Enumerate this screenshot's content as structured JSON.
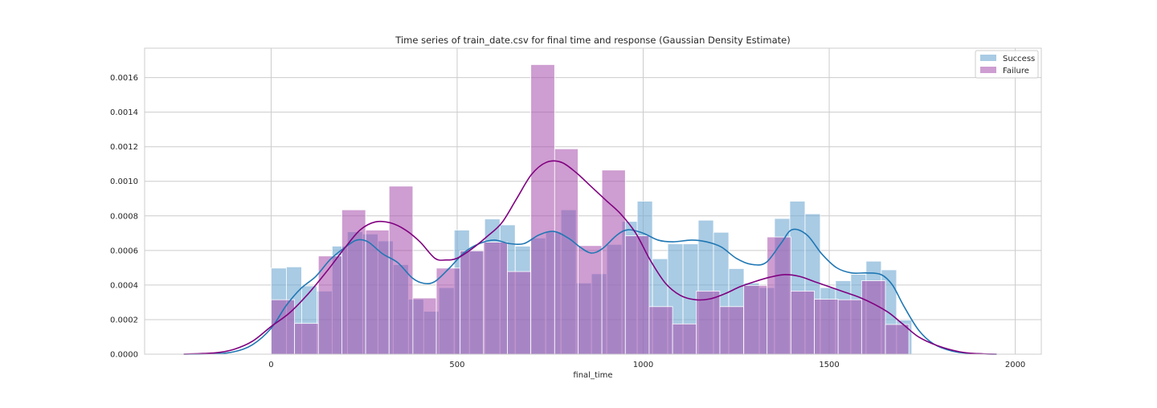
{
  "colors": {
    "success_bar": "#6fa8d2",
    "failure_bar": "#a64dab",
    "success_line": "#1f77b4",
    "failure_line": "#800080",
    "grid": "#cccccc",
    "axes_edge": "#cccccc",
    "text": "#262626"
  },
  "chart_data": {
    "type": "bar",
    "title": "Time series of train_date.csv for final time and response (Gaussian Density Estimate)",
    "xlabel": "final_time",
    "ylabel": "",
    "xlim": [
      -340,
      2070
    ],
    "ylim": [
      0,
      0.00177
    ],
    "grid": true,
    "legend_position": "top-right",
    "xticks": [
      0,
      500,
      1000,
      1500,
      2000
    ],
    "xtick_labels": [
      "0",
      "500",
      "1000",
      "1500",
      "2000"
    ],
    "yticks": [
      0,
      0.0002,
      0.0004,
      0.0006,
      0.0008,
      0.001,
      0.0012,
      0.0014,
      0.0016
    ],
    "ytick_labels": [
      "0.0000",
      "0.0002",
      "0.0004",
      "0.0006",
      "0.0008",
      "0.0010",
      "0.0012",
      "0.0014",
      "0.0016"
    ],
    "series": [
      {
        "name": "Success",
        "kind": "histogram",
        "color": "#6fa8d2",
        "opacity": 0.6,
        "bins": [
          [
            0,
            41,
            0.000498
          ],
          [
            41,
            82,
            0.000505
          ],
          [
            82,
            123,
            0.000395
          ],
          [
            123,
            164,
            0.000365
          ],
          [
            164,
            205,
            0.000625
          ],
          [
            205,
            246,
            0.000708
          ],
          [
            246,
            287,
            0.000695
          ],
          [
            287,
            328,
            0.000655
          ],
          [
            328,
            369,
            0.000518
          ],
          [
            369,
            410,
            0.000318
          ],
          [
            410,
            451,
            0.000248
          ],
          [
            451,
            492,
            0.000385
          ],
          [
            492,
            533,
            0.000718
          ],
          [
            533,
            574,
            0.000598
          ],
          [
            574,
            615,
            0.000782
          ],
          [
            615,
            656,
            0.000748
          ],
          [
            656,
            697,
            0.000625
          ],
          [
            697,
            738,
            0.000672
          ],
          [
            738,
            779,
            0.000708
          ],
          [
            779,
            820,
            0.000835
          ],
          [
            820,
            861,
            0.000412
          ],
          [
            861,
            902,
            0.000465
          ],
          [
            902,
            943,
            0.000635
          ],
          [
            943,
            984,
            0.000768
          ],
          [
            984,
            1025,
            0.000885
          ],
          [
            1025,
            1066,
            0.000552
          ],
          [
            1066,
            1107,
            0.000638
          ],
          [
            1107,
            1148,
            0.000638
          ],
          [
            1148,
            1189,
            0.000775
          ],
          [
            1189,
            1230,
            0.000705
          ],
          [
            1230,
            1271,
            0.000495
          ],
          [
            1271,
            1312,
            0.000412
          ],
          [
            1312,
            1353,
            0.000385
          ],
          [
            1353,
            1394,
            0.000785
          ],
          [
            1394,
            1435,
            0.000885
          ],
          [
            1435,
            1476,
            0.000812
          ],
          [
            1476,
            1517,
            0.000385
          ],
          [
            1517,
            1558,
            0.000425
          ],
          [
            1558,
            1599,
            0.000462
          ],
          [
            1599,
            1640,
            0.000538
          ],
          [
            1640,
            1681,
            0.000488
          ],
          [
            1681,
            1722,
            0.000198
          ]
        ],
        "kde": [
          [
            -235,
            0.0
          ],
          [
            -150,
            2.5e-06
          ],
          [
            -100,
            1.4e-05
          ],
          [
            -50,
            5.5e-05
          ],
          [
            0,
            0.00015
          ],
          [
            40,
            0.00028
          ],
          [
            80,
            0.00038
          ],
          [
            120,
            0.00045
          ],
          [
            160,
            0.00055
          ],
          [
            200,
            0.00062
          ],
          [
            230,
            0.00066
          ],
          [
            260,
            0.00065
          ],
          [
            300,
            0.00058
          ],
          [
            340,
            0.00053
          ],
          [
            380,
            0.00044
          ],
          [
            410,
            0.00041
          ],
          [
            440,
            0.00042
          ],
          [
            480,
            0.0005
          ],
          [
            520,
            0.00059
          ],
          [
            560,
            0.00064
          ],
          [
            600,
            0.00066
          ],
          [
            640,
            0.00064
          ],
          [
            680,
            0.00064
          ],
          [
            720,
            0.00069
          ],
          [
            760,
            0.00071
          ],
          [
            800,
            0.00067
          ],
          [
            830,
            0.00062
          ],
          [
            860,
            0.000585
          ],
          [
            890,
            0.00061
          ],
          [
            930,
            0.00069
          ],
          [
            960,
            0.00072
          ],
          [
            1000,
            0.0007
          ],
          [
            1040,
            0.00066
          ],
          [
            1080,
            0.00065
          ],
          [
            1130,
            0.00066
          ],
          [
            1170,
            0.00065
          ],
          [
            1210,
            0.00062
          ],
          [
            1250,
            0.000555
          ],
          [
            1290,
            0.00052
          ],
          [
            1330,
            0.00053
          ],
          [
            1370,
            0.00064
          ],
          [
            1400,
            0.00072
          ],
          [
            1440,
            0.00069
          ],
          [
            1480,
            0.00058
          ],
          [
            1520,
            0.0005
          ],
          [
            1560,
            0.00047
          ],
          [
            1600,
            0.00047
          ],
          [
            1640,
            0.00046
          ],
          [
            1670,
            0.0004
          ],
          [
            1700,
            0.00028
          ],
          [
            1740,
            0.00014
          ],
          [
            1780,
            6e-05
          ],
          [
            1830,
            1.8e-05
          ],
          [
            1880,
            4e-06
          ],
          [
            1950,
            0.0
          ]
        ]
      },
      {
        "name": "Failure",
        "kind": "histogram",
        "color": "#a64dab",
        "opacity": 0.55,
        "bins": [
          [
            0,
            63,
            0.000315
          ],
          [
            63,
            127,
            0.000178
          ],
          [
            127,
            190,
            0.000568
          ],
          [
            190,
            254,
            0.000835
          ],
          [
            254,
            317,
            0.000718
          ],
          [
            317,
            381,
            0.000972
          ],
          [
            381,
            444,
            0.000325
          ],
          [
            444,
            508,
            0.000498
          ],
          [
            508,
            571,
            0.000598
          ],
          [
            571,
            635,
            0.000648
          ],
          [
            635,
            698,
            0.000478
          ],
          [
            698,
            762,
            0.001675
          ],
          [
            762,
            825,
            0.001188
          ],
          [
            825,
            889,
            0.000628
          ],
          [
            889,
            952,
            0.001065
          ],
          [
            952,
            1016,
            0.000685
          ],
          [
            1016,
            1079,
            0.000275
          ],
          [
            1079,
            1143,
            0.000175
          ],
          [
            1143,
            1206,
            0.000365
          ],
          [
            1206,
            1270,
            0.000275
          ],
          [
            1270,
            1333,
            0.000398
          ],
          [
            1333,
            1397,
            0.000678
          ],
          [
            1397,
            1460,
            0.000365
          ],
          [
            1460,
            1524,
            0.000318
          ],
          [
            1524,
            1587,
            0.000315
          ],
          [
            1587,
            1651,
            0.000425
          ],
          [
            1651,
            1714,
            0.000172
          ]
        ],
        "kde": [
          [
            -235,
            0.0
          ],
          [
            -150,
            8e-06
          ],
          [
            -100,
            2.8e-05
          ],
          [
            -50,
            7.5e-05
          ],
          [
            0,
            0.00016
          ],
          [
            50,
            0.00024
          ],
          [
            100,
            0.00035
          ],
          [
            150,
            0.00048
          ],
          [
            200,
            0.00062
          ],
          [
            240,
            0.00072
          ],
          [
            280,
            0.000765
          ],
          [
            320,
            0.00076
          ],
          [
            360,
            0.00072
          ],
          [
            400,
            0.00065
          ],
          [
            440,
            0.000555
          ],
          [
            470,
            0.000545
          ],
          [
            500,
            0.000555
          ],
          [
            540,
            0.00061
          ],
          [
            580,
            0.00068
          ],
          [
            620,
            0.00076
          ],
          [
            660,
            0.0009
          ],
          [
            700,
            0.00104
          ],
          [
            740,
            0.00111
          ],
          [
            780,
            0.00111
          ],
          [
            820,
            0.00105
          ],
          [
            860,
            0.00097
          ],
          [
            900,
            0.00089
          ],
          [
            940,
            0.00081
          ],
          [
            980,
            0.0007
          ],
          [
            1020,
            0.00054
          ],
          [
            1060,
            0.00041
          ],
          [
            1100,
            0.00034
          ],
          [
            1140,
            0.000315
          ],
          [
            1180,
            0.00032
          ],
          [
            1220,
            0.00035
          ],
          [
            1260,
            0.00039
          ],
          [
            1300,
            0.00042
          ],
          [
            1340,
            0.000445
          ],
          [
            1380,
            0.00046
          ],
          [
            1420,
            0.00045
          ],
          [
            1460,
            0.00042
          ],
          [
            1500,
            0.00039
          ],
          [
            1540,
            0.00036
          ],
          [
            1580,
            0.00033
          ],
          [
            1620,
            0.00029
          ],
          [
            1660,
            0.00024
          ],
          [
            1700,
            0.00017
          ],
          [
            1740,
            0.0001
          ],
          [
            1790,
            5e-05
          ],
          [
            1850,
            1.4e-05
          ],
          [
            1900,
            3e-06
          ],
          [
            1950,
            0.0
          ]
        ]
      }
    ]
  }
}
